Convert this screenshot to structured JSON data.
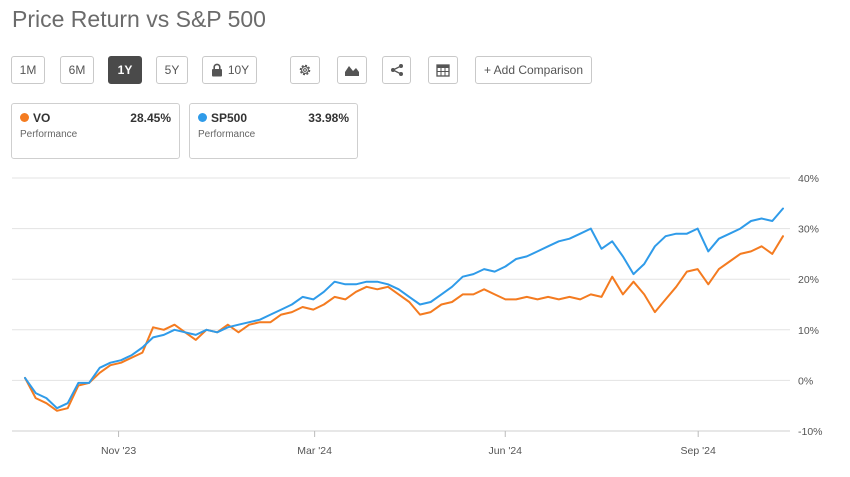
{
  "title": "Price Return vs S&P 500",
  "toolbar": {
    "ranges": [
      "1M",
      "6M",
      "1Y",
      "5Y"
    ],
    "active_range": "1Y",
    "locked_range": "10Y",
    "icons": [
      "gear-icon",
      "mountain-chart-icon",
      "share-icon",
      "table-icon"
    ],
    "add_comparison": "+ Add Comparison"
  },
  "cards": [
    {
      "symbol": "VO",
      "value": "28.45%",
      "label": "Performance",
      "color": "#f47b20"
    },
    {
      "symbol": "SP500",
      "value": "33.98%",
      "label": "Performance",
      "color": "#2f9be9"
    }
  ],
  "chart_data": {
    "type": "line",
    "x_ticks": [
      "Nov '23",
      "Mar '24",
      "Jun '24",
      "Sep '24"
    ],
    "y_ticks": [
      "40%",
      "30%",
      "20%",
      "10%",
      "0%",
      "-10%"
    ],
    "ylim": [
      -10,
      40
    ],
    "grid": true,
    "series": [
      {
        "name": "VO",
        "color": "#f47b20",
        "values": [
          0.5,
          -3.5,
          -4.5,
          -6.0,
          -5.5,
          -1.0,
          -0.5,
          1.5,
          3.0,
          3.5,
          4.5,
          5.5,
          10.5,
          10.0,
          11.0,
          9.5,
          8.0,
          10.0,
          9.5,
          11.0,
          9.5,
          11.0,
          11.5,
          11.5,
          13.0,
          13.5,
          14.5,
          14.0,
          15.0,
          16.5,
          16.0,
          17.5,
          18.5,
          18.0,
          18.5,
          17.0,
          15.5,
          13.0,
          13.5,
          15.0,
          15.5,
          17.0,
          17.0,
          18.0,
          17.0,
          16.0,
          16.0,
          16.5,
          16.0,
          16.5,
          16.0,
          16.5,
          16.0,
          17.0,
          16.5,
          20.5,
          17.0,
          19.5,
          17.0,
          13.5,
          16.0,
          18.5,
          21.5,
          22.0,
          19.0,
          22.0,
          23.5,
          25.0,
          25.5,
          26.5,
          25.0,
          28.5
        ]
      },
      {
        "name": "SP500",
        "color": "#2f9be9",
        "values": [
          0.5,
          -2.5,
          -3.5,
          -5.5,
          -4.5,
          -0.5,
          -0.5,
          2.5,
          3.5,
          4.0,
          5.0,
          6.5,
          8.5,
          9.0,
          10.0,
          9.5,
          9.0,
          10.0,
          9.5,
          10.5,
          11.0,
          11.5,
          12.0,
          13.0,
          14.0,
          15.0,
          16.5,
          16.0,
          17.5,
          19.5,
          19.0,
          19.0,
          19.5,
          19.5,
          19.0,
          18.0,
          16.5,
          15.0,
          15.5,
          17.0,
          18.5,
          20.5,
          21.0,
          22.0,
          21.5,
          22.5,
          24.0,
          24.5,
          25.5,
          26.5,
          27.5,
          28.0,
          29.0,
          30.0,
          26.0,
          27.5,
          24.5,
          21.0,
          23.0,
          26.5,
          28.5,
          29.0,
          29.0,
          30.0,
          25.5,
          28.0,
          29.0,
          30.0,
          31.5,
          32.0,
          31.5,
          33.98
        ]
      }
    ]
  }
}
